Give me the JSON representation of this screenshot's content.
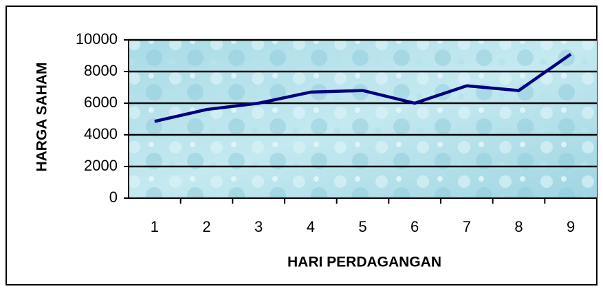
{
  "chart_data": {
    "type": "line",
    "xlabel": "HARI PERDAGANGAN",
    "ylabel": "HARGA SAHAM",
    "categories": [
      1,
      2,
      3,
      4,
      5,
      6,
      7,
      8,
      9
    ],
    "series": [
      {
        "color": "#000080",
        "values": [
          4850,
          5600,
          6000,
          6700,
          6800,
          6000,
          7100,
          6800,
          9100
        ]
      }
    ],
    "ylim": [
      0,
      10000
    ],
    "yticks": [
      0,
      2000,
      4000,
      6000,
      8000,
      10000
    ],
    "grid": true
  }
}
